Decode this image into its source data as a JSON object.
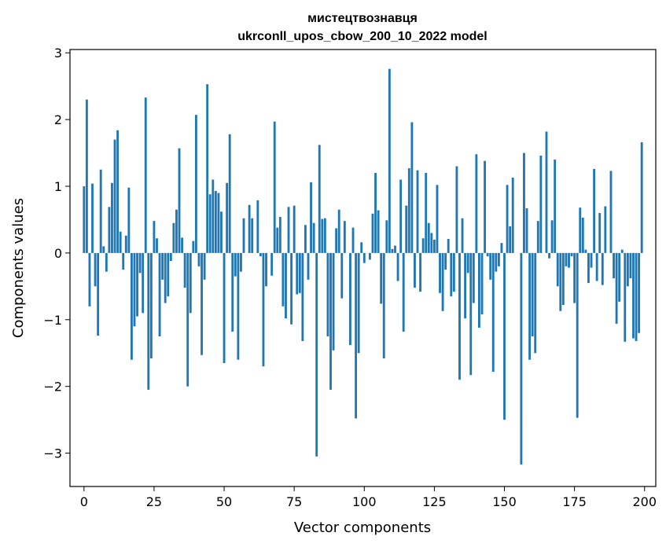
{
  "chart_data": {
    "type": "bar",
    "title_line1": "мистецтвознавця",
    "title_line2": "ukrconll_upos_cbow_200_10_2022 model",
    "xlabel": "Vector components",
    "ylabel": "Components values",
    "xlim": [
      -5,
      204
    ],
    "ylim": [
      -3.5,
      3.05
    ],
    "xticks": [
      0,
      25,
      50,
      75,
      100,
      125,
      150,
      175,
      200
    ],
    "yticks": [
      -3,
      -2,
      -1,
      0,
      1,
      2,
      3
    ],
    "xtick_labels": [
      "0",
      "25",
      "50",
      "75",
      "100",
      "125",
      "150",
      "175",
      "200"
    ],
    "ytick_labels": [
      "−3",
      "−2",
      "−1",
      "0",
      "1",
      "2",
      "3"
    ],
    "grid": false,
    "bar_color": "#1f77b4",
    "x": [
      0,
      1,
      2,
      3,
      4,
      5,
      6,
      7,
      8,
      9,
      10,
      11,
      12,
      13,
      14,
      15,
      16,
      17,
      18,
      19,
      20,
      21,
      22,
      23,
      24,
      25,
      26,
      27,
      28,
      29,
      30,
      31,
      32,
      33,
      34,
      35,
      36,
      37,
      38,
      39,
      40,
      41,
      42,
      43,
      44,
      45,
      46,
      47,
      48,
      49,
      50,
      51,
      52,
      53,
      54,
      55,
      56,
      57,
      58,
      59,
      60,
      61,
      62,
      63,
      64,
      65,
      66,
      67,
      68,
      69,
      70,
      71,
      72,
      73,
      74,
      75,
      76,
      77,
      78,
      79,
      80,
      81,
      82,
      83,
      84,
      85,
      86,
      87,
      88,
      89,
      90,
      91,
      92,
      93,
      94,
      95,
      96,
      97,
      98,
      99,
      100,
      101,
      102,
      103,
      104,
      105,
      106,
      107,
      108,
      109,
      110,
      111,
      112,
      113,
      114,
      115,
      116,
      117,
      118,
      119,
      120,
      121,
      122,
      123,
      124,
      125,
      126,
      127,
      128,
      129,
      130,
      131,
      132,
      133,
      134,
      135,
      136,
      137,
      138,
      139,
      140,
      141,
      142,
      143,
      144,
      145,
      146,
      147,
      148,
      149,
      150,
      151,
      152,
      153,
      154,
      155,
      156,
      157,
      158,
      159,
      160,
      161,
      162,
      163,
      164,
      165,
      166,
      167,
      168,
      169,
      170,
      171,
      172,
      173,
      174,
      175,
      176,
      177,
      178,
      179,
      180,
      181,
      182,
      183,
      184,
      185,
      186,
      187,
      188,
      189,
      190,
      191,
      192,
      193,
      194,
      195,
      196,
      197,
      198,
      199
    ],
    "values": [
      1.0,
      2.3,
      -0.8,
      1.04,
      -0.5,
      -1.24,
      1.25,
      0.1,
      -0.28,
      0.69,
      1.05,
      1.7,
      1.84,
      0.32,
      -0.25,
      0.26,
      0.98,
      -1.6,
      -1.1,
      -0.95,
      -0.3,
      -0.9,
      2.33,
      -2.05,
      -1.58,
      0.48,
      0.22,
      -1.25,
      -0.4,
      -0.75,
      -0.65,
      -0.12,
      0.45,
      0.65,
      1.57,
      0.23,
      -0.52,
      -2.0,
      -0.9,
      0.18,
      2.07,
      -0.2,
      -1.53,
      -0.4,
      2.53,
      0.88,
      1.1,
      0.93,
      0.9,
      0.62,
      -1.65,
      1.05,
      1.78,
      -1.18,
      -0.35,
      -1.6,
      -0.28,
      0.52,
      0.0,
      0.72,
      0.52,
      0.0,
      0.79,
      -0.05,
      -1.7,
      -0.5,
      0.0,
      -0.34,
      1.97,
      0.38,
      0.54,
      -0.8,
      -0.98,
      0.69,
      -1.07,
      0.71,
      -0.62,
      -0.6,
      -1.32,
      0.42,
      -0.4,
      1.06,
      0.45,
      -3.05,
      1.62,
      0.51,
      0.52,
      -1.25,
      -2.05,
      -1.46,
      0.37,
      0.65,
      -0.68,
      0.48,
      0.0,
      -1.38,
      0.38,
      -2.48,
      -1.5,
      0.16,
      -0.15,
      0.0,
      -0.1,
      0.59,
      1.2,
      0.64,
      -0.76,
      -1.58,
      0.49,
      2.76,
      0.06,
      0.11,
      -0.42,
      1.1,
      -1.18,
      0.71,
      1.27,
      1.96,
      -0.52,
      1.24,
      -0.58,
      0.22,
      1.2,
      0.45,
      0.3,
      0.2,
      1.02,
      -0.6,
      -0.87,
      -0.25,
      0.21,
      -0.65,
      -0.58,
      1.3,
      -1.9,
      0.52,
      -0.98,
      -0.3,
      -1.83,
      -0.75,
      1.48,
      -1.12,
      -0.92,
      1.38,
      -0.05,
      -0.4,
      -1.78,
      -0.28,
      -0.2,
      0.15,
      -2.5,
      1.02,
      0.4,
      1.13,
      0.0,
      0.0,
      -3.17,
      1.5,
      0.67,
      -1.6,
      -1.25,
      -1.5,
      0.48,
      1.46,
      0.0,
      1.82,
      -0.08,
      0.49,
      1.4,
      -0.5,
      -0.87,
      -0.78,
      -0.2,
      -0.22,
      -0.05,
      -0.75,
      -2.47,
      0.68,
      0.53,
      0.05,
      -0.45,
      -0.22,
      1.26,
      -0.42,
      0.6,
      -0.48,
      0.7,
      0.0,
      1.23,
      -0.38,
      -1.06,
      -0.73,
      0.05,
      -1.33,
      -0.5,
      -0.38,
      -1.28,
      -1.32,
      -1.2,
      1.66
    ]
  }
}
